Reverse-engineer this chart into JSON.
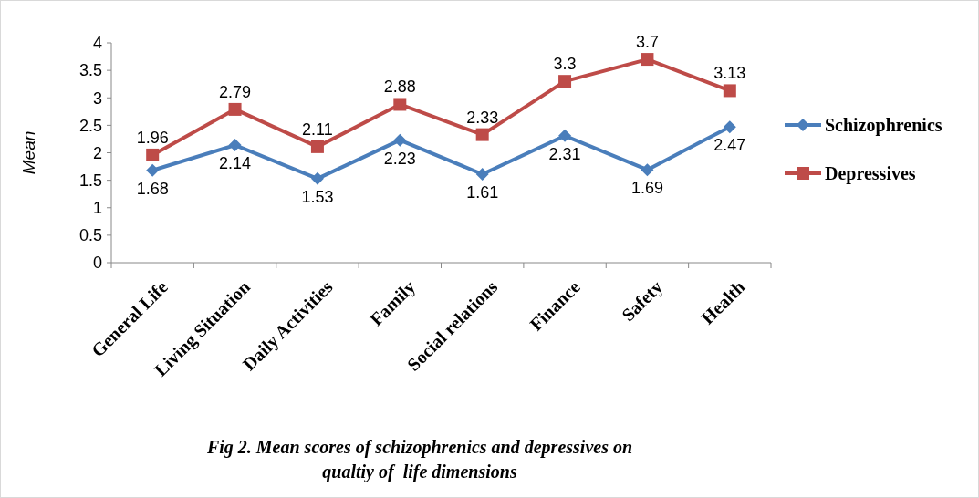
{
  "chart_data": {
    "type": "line",
    "title": "Fig 2. Mean scores of schizophrenics and depressives on qualtiy of  life dimensions",
    "ylabel": "Mean",
    "categories": [
      "General Life",
      "Living Situation",
      "Daily Activities",
      "Family",
      "Social relations",
      "Finance",
      "Safety",
      "Health"
    ],
    "series": [
      {
        "name": "Schizophrenics",
        "color": "#4a7ebb",
        "marker": "diamond",
        "values": [
          1.68,
          2.14,
          1.53,
          2.23,
          1.61,
          2.31,
          1.69,
          2.47
        ]
      },
      {
        "name": "Depressives",
        "color": "#be4b48",
        "marker": "square",
        "values": [
          1.96,
          2.79,
          2.11,
          2.88,
          2.33,
          3.3,
          3.7,
          3.13
        ]
      }
    ],
    "ylim": [
      0,
      4
    ],
    "yticks": [
      0,
      0.5,
      1,
      1.5,
      2,
      2.5,
      3,
      3.5,
      4
    ],
    "grid": false,
    "legend": "right",
    "data_labels": true
  }
}
